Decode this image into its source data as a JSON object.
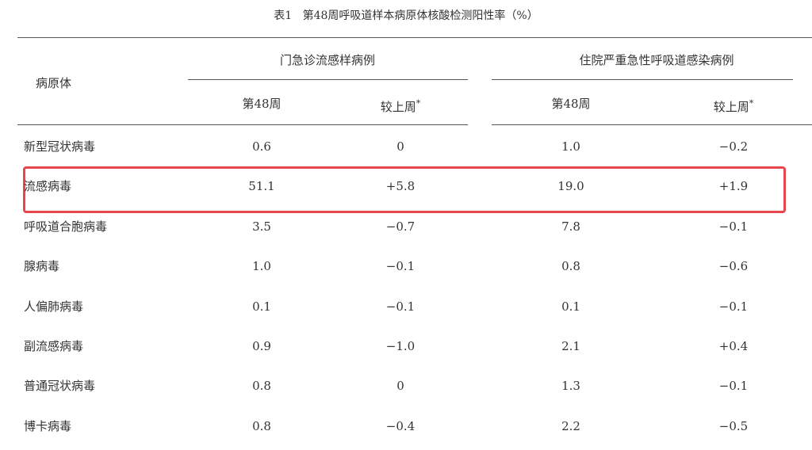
{
  "table": {
    "caption": {
      "label": "表1",
      "text": "第48周呼吸道样本病原体核酸检测阳性率（%）"
    },
    "row_header": "病原体",
    "groups": [
      {
        "title": "门急诊流感样病例",
        "columns": [
          {
            "text": "第48周"
          },
          {
            "text": "较上周",
            "note": "*"
          }
        ]
      },
      {
        "title": "住院严重急性呼吸道感染病例",
        "columns": [
          {
            "text": "第48周"
          },
          {
            "text": "较上周",
            "note": "*"
          }
        ]
      }
    ],
    "rows": [
      [
        "新型冠状病毒",
        "0.6",
        "0",
        "1.0",
        "−0.2"
      ],
      [
        "流感病毒",
        "51.1",
        "+5.8",
        "19.0",
        "+1.9"
      ],
      [
        "呼吸道合胞病毒",
        "3.5",
        "−0.7",
        "7.8",
        "−0.1"
      ],
      [
        "腺病毒",
        "1.0",
        "−0.1",
        "0.8",
        "−0.6"
      ],
      [
        "人偏肺病毒",
        "0.1",
        "−0.1",
        "0.1",
        "−0.1"
      ],
      [
        "副流感病毒",
        "0.9",
        "−1.0",
        "2.1",
        "+0.4"
      ],
      [
        "普通冠状病毒",
        "0.8",
        "0",
        "1.3",
        "−0.1"
      ],
      [
        "博卡病毒",
        "0.8",
        "−0.4",
        "2.2",
        "−0.5"
      ]
    ]
  }
}
